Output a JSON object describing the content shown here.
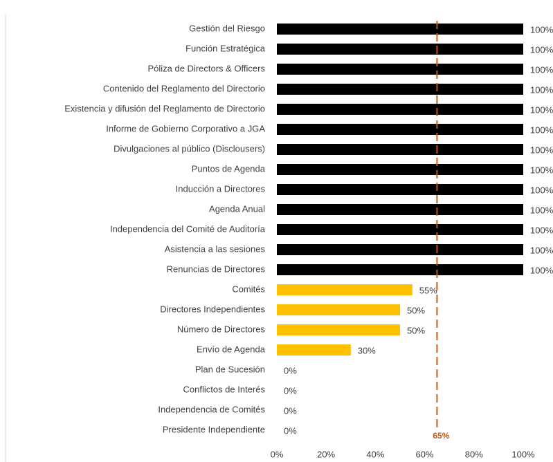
{
  "chart_data": {
    "type": "barh",
    "categories": [
      "Gestión del Riesgo",
      "Función Estratégica",
      "Póliza de Directors & Officers",
      "Contenido del Reglamento del Directorio",
      "Existencia y difusión del Reglamento de Directorio",
      "Informe de Gobierno Corporativo a JGA",
      "Divulgaciones al público (Disclousers)",
      "Puntos de Agenda",
      "Inducción a Directores",
      "Agenda Anual",
      "Independencia del Comité de Auditoría",
      "Asistencia a las sesiones",
      "Renuncias de Directores",
      "Comités",
      "Directores Independientes",
      "Número de Directores",
      "Envío de Agenda",
      "Plan de Sucesión",
      "Conflictos de Interés",
      "Independencia de Comités",
      "Presidente Independiente"
    ],
    "values": [
      100,
      100,
      100,
      100,
      100,
      100,
      100,
      100,
      100,
      100,
      100,
      100,
      100,
      55,
      50,
      50,
      30,
      0,
      0,
      0,
      0
    ],
    "value_labels": [
      "100%",
      "100%",
      "100%",
      "100%",
      "100%",
      "100%",
      "100%",
      "100%",
      "100%",
      "100%",
      "100%",
      "100%",
      "100%",
      "55%",
      "50%",
      "50%",
      "30%",
      "0%",
      "0%",
      "0%",
      "0%"
    ],
    "colors": [
      "#000000",
      "#000000",
      "#000000",
      "#000000",
      "#000000",
      "#000000",
      "#000000",
      "#000000",
      "#000000",
      "#000000",
      "#000000",
      "#000000",
      "#000000",
      "#ffc000",
      "#ffc000",
      "#ffc000",
      "#ffc000",
      "#ffc000",
      "#ffc000",
      "#ffc000",
      "#ffc000"
    ],
    "xlim": [
      0,
      100
    ],
    "xticks": [
      {
        "value": 0,
        "label": "0%"
      },
      {
        "value": 20,
        "label": "20%"
      },
      {
        "value": 40,
        "label": "40%"
      },
      {
        "value": 60,
        "label": "60%"
      },
      {
        "value": 80,
        "label": "80%"
      },
      {
        "value": 100,
        "label": "100%"
      }
    ],
    "reference_line": {
      "value": 65,
      "label": "65%",
      "color": "#c55a11"
    }
  }
}
